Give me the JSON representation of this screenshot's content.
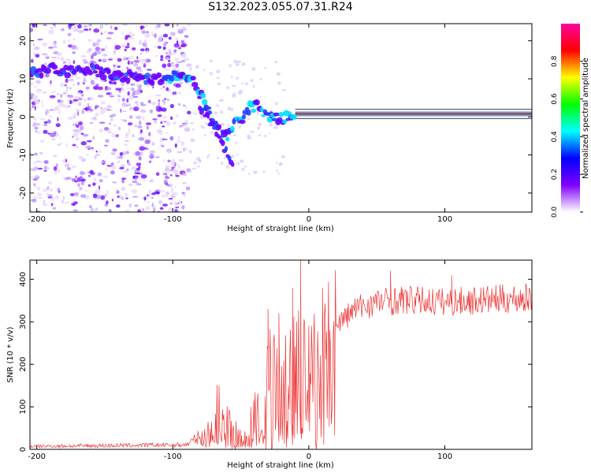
{
  "title": "S132.2023.055.07.31.R24",
  "chart_data": [
    {
      "type": "heatmap",
      "xlabel": "Height of straight line (km)",
      "ylabel": "Frequency (Hz)",
      "xlim": [
        -205,
        164
      ],
      "ylim": [
        -25,
        24.5
      ],
      "xticks": [
        -200,
        -100,
        0,
        100
      ],
      "yticks": [
        -20,
        -10,
        0,
        10,
        20
      ],
      "colorbar": {
        "label": "Normalized spectral amplitude",
        "range": [
          0,
          1
        ],
        "ticks": [
          "0.0",
          "0.2",
          "0.4",
          "0.6",
          "0.8"
        ],
        "colormap": [
          "#ffffff",
          "#8000ff",
          "#0000ff",
          "#00ffff",
          "#00ff00",
          "#ffff00",
          "#ff0000",
          "#ff00a0"
        ]
      },
      "carrier_trace": [
        {
          "x": -205,
          "y": 11.5
        },
        {
          "x": -190,
          "y": 12.5
        },
        {
          "x": -175,
          "y": 12
        },
        {
          "x": -160,
          "y": 12.5
        },
        {
          "x": -145,
          "y": 11
        },
        {
          "x": -130,
          "y": 10.5
        },
        {
          "x": -120,
          "y": 9.5
        },
        {
          "x": -100,
          "y": 10.5
        },
        {
          "x": -92,
          "y": 11
        },
        {
          "x": -85,
          "y": 9
        },
        {
          "x": -80,
          "y": 6
        },
        {
          "x": -75,
          "y": 2.5
        },
        {
          "x": -70,
          "y": -1
        },
        {
          "x": -65,
          "y": -4
        },
        {
          "x": -60,
          "y": -5
        },
        {
          "x": -55,
          "y": -2
        },
        {
          "x": -50,
          "y": -1
        },
        {
          "x": -45,
          "y": 2
        },
        {
          "x": -40,
          "y": 3
        },
        {
          "x": -35,
          "y": 2
        },
        {
          "x": -28,
          "y": 0
        },
        {
          "x": -20,
          "y": -0.5
        },
        {
          "x": -10,
          "y": 0.8
        },
        {
          "x": 0,
          "y": 0.8
        },
        {
          "x": 20,
          "y": 0.8
        },
        {
          "x": 60,
          "y": 0.8
        },
        {
          "x": 100,
          "y": 0.8
        },
        {
          "x": 164,
          "y": 0.8
        }
      ],
      "secondary_trace": [
        {
          "x": -80,
          "y": 3
        },
        {
          "x": -70,
          "y": -3
        },
        {
          "x": -62,
          "y": -8
        },
        {
          "x": -55,
          "y": -14
        }
      ]
    },
    {
      "type": "line",
      "xlabel": "Height of straight line (km)",
      "ylabel": "SNR (10 * v/v)",
      "xlim": [
        -205,
        164
      ],
      "ylim": [
        0,
        445
      ],
      "xticks": [
        -200,
        -100,
        0,
        100
      ],
      "yticks": [
        0,
        100,
        200,
        300,
        400
      ],
      "series": [
        {
          "color": "#ee3333",
          "envelope": [
            {
              "x": -205,
              "y": 8
            },
            {
              "x": -150,
              "y": 10
            },
            {
              "x": -90,
              "y": 12
            },
            {
              "x": -78,
              "y": 40
            },
            {
              "x": -70,
              "y": 100
            },
            {
              "x": -65,
              "y": 140
            },
            {
              "x": -58,
              "y": 60
            },
            {
              "x": -50,
              "y": 30
            },
            {
              "x": -45,
              "y": 40
            },
            {
              "x": -38,
              "y": 120
            },
            {
              "x": -30,
              "y": 220
            },
            {
              "x": -25,
              "y": 180
            },
            {
              "x": -20,
              "y": 230
            },
            {
              "x": -12,
              "y": 260
            },
            {
              "x": -5,
              "y": 250
            },
            {
              "x": 0,
              "y": 220
            },
            {
              "x": 10,
              "y": 250
            },
            {
              "x": 20,
              "y": 300
            },
            {
              "x": 35,
              "y": 340
            },
            {
              "x": 50,
              "y": 355
            },
            {
              "x": 70,
              "y": 360
            },
            {
              "x": 100,
              "y": 355
            },
            {
              "x": 130,
              "y": 360
            },
            {
              "x": 164,
              "y": 365
            }
          ],
          "spikes": [
            {
              "x": -6,
              "y": 445
            },
            {
              "x": -12,
              "y": 380
            },
            {
              "x": 10,
              "y": 380
            },
            {
              "x": 60,
              "y": 420
            },
            {
              "x": -30,
              "y": 330
            },
            {
              "x": -22,
              "y": 320
            },
            {
              "x": 105,
              "y": 410
            }
          ]
        }
      ]
    }
  ]
}
